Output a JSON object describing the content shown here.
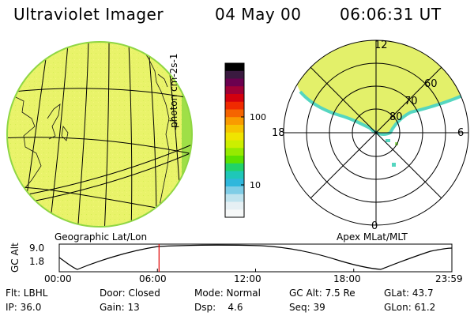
{
  "header": {
    "instrument": "Ultraviolet Imager",
    "date": "04 May 00",
    "time": "06:06:31 UT"
  },
  "colorbar": {
    "label": "photon cm-2s-1",
    "ticks": [
      "100",
      "10"
    ],
    "colors": [
      "#000000",
      "#3a1a40",
      "#6b004f",
      "#a00036",
      "#d3000e",
      "#f02a00",
      "#f56400",
      "#f99b00",
      "#f6c400",
      "#f0e400",
      "#ccef00",
      "#96ea00",
      "#5ce100",
      "#21d26a",
      "#1fc7b8",
      "#2fb7dc",
      "#7fcde6",
      "#bfe3ee",
      "#e6f0f4",
      "#f6f8f8"
    ]
  },
  "geo_map": {
    "label": "Geographic Lat/Lon",
    "fill": "#e9f36a",
    "rim": "#9fdf47"
  },
  "polar": {
    "label": "Apex MLat/MLT",
    "mlt_labels": {
      "top": "12",
      "left": "18",
      "right": "6",
      "bottom": "0"
    },
    "lat_labels": [
      "60",
      "70",
      "80"
    ]
  },
  "alt_plot": {
    "ylabel": "GC Alt",
    "yticks": [
      "9.0",
      "1.8"
    ],
    "xticks": [
      "00:00",
      "06:00",
      "12:00",
      "18:00",
      "23:59"
    ],
    "marker_hour": 6.1
  },
  "status": {
    "row1": {
      "flt": "Flt: LBHL",
      "door": "Door: Closed",
      "mode": "Mode: Normal",
      "gcalt": "GC Alt: 7.5 Re",
      "glat": "GLat: 43.7"
    },
    "row2": {
      "ip": "IP: 36.0",
      "gain": "Gain: 13",
      "dsp": "Dsp:    4.6",
      "seq": "Seq: 39",
      "glon": "GLon: 61.2"
    }
  }
}
